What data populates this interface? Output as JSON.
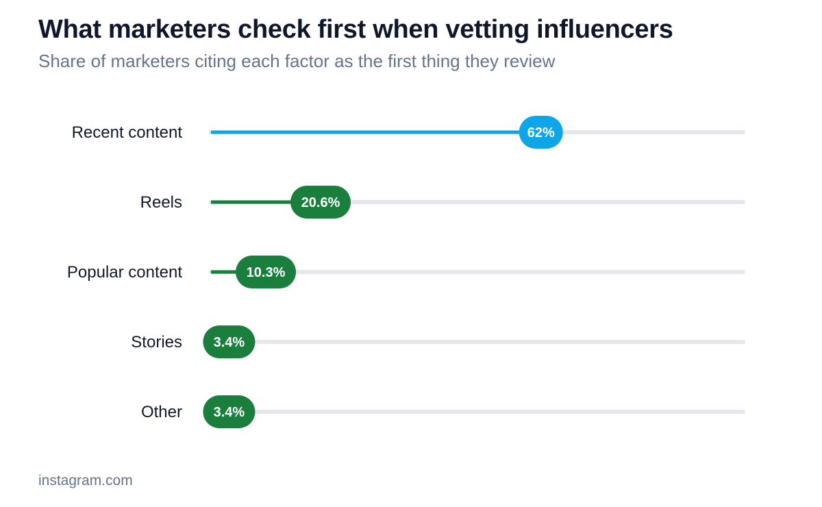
{
  "header": {
    "title": "What marketers check first when vetting influencers",
    "subtitle": "Share of marketers citing each factor as the first thing they review"
  },
  "footer": {
    "source": "instagram.com"
  },
  "colors": {
    "highlight": "#0ea5e9",
    "default": "#1a7f3c",
    "track": "#e5e7eb"
  },
  "chart_data": {
    "type": "bar",
    "orientation": "horizontal",
    "categories": [
      "Recent content",
      "Reels",
      "Popular content",
      "Stories",
      "Other"
    ],
    "values": [
      62,
      20.6,
      10.3,
      3.4,
      3.4
    ],
    "value_labels": [
      "62%",
      "20.6%",
      "10.3%",
      "3.4%",
      "3.4%"
    ],
    "unit": "%",
    "xlim": [
      0,
      100
    ],
    "highlight_index": 0,
    "grid": false,
    "legend": "none"
  }
}
